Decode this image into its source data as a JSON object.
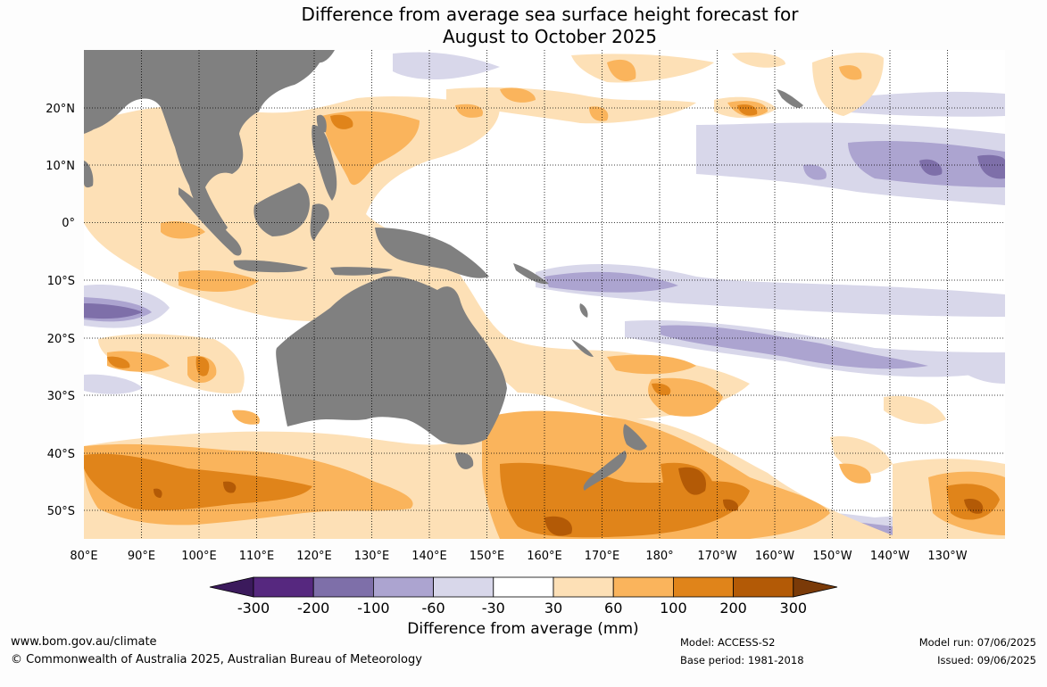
{
  "title_line1": "Difference from average sea surface height forecast for",
  "title_line2": "August to October 2025",
  "lat_labels": [
    "20°N",
    "10°N",
    "0°",
    "10°S",
    "20°S",
    "30°S",
    "40°S",
    "50°S"
  ],
  "lon_labels": [
    "80°E",
    "90°E",
    "100°E",
    "110°E",
    "120°E",
    "130°E",
    "140°E",
    "150°E",
    "160°E",
    "170°E",
    "180°",
    "170°W",
    "160°W",
    "150°W",
    "140°W",
    "130°W"
  ],
  "colorbar": {
    "title": "Difference from average (mm)",
    "ticks": [
      "-300",
      "-200",
      "-100",
      "-60",
      "-30",
      "30",
      "60",
      "100",
      "200",
      "300"
    ],
    "colors": [
      "#3b1a5c",
      "#56287f",
      "#7e6fa9",
      "#aca4d0",
      "#d8d7ea",
      "#ffffff",
      "#fde0b6",
      "#fab45c",
      "#e0841a",
      "#b35a06",
      "#7a3a08"
    ]
  },
  "colors": {
    "land": "#808080",
    "positive_light": "#fde0b6",
    "positive_mid": "#fab45c",
    "positive_strong": "#e0841a",
    "positive_max": "#b35a06",
    "negative_light": "#d8d7ea",
    "negative_mid": "#aca4d0",
    "negative_strong": "#7e6fa9"
  },
  "footer": {
    "website": "www.bom.gov.au/climate",
    "copyright": "© Commonwealth of Australia 2025, Australian Bureau of Meteorology",
    "model": "Model: ACCESS-S2",
    "base_period": "Base period: 1981-2018",
    "model_run": "Model run: 07/06/2025",
    "issued": "Issued: 09/06/2025"
  }
}
